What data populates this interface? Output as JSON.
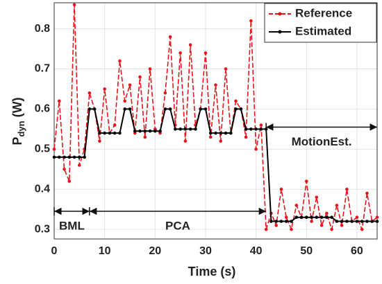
{
  "chart_data": {
    "type": "line",
    "xlabel": "Time (s)",
    "ylabel": {
      "main": "P",
      "sub": "dyn",
      "unit": "(W)"
    },
    "x": [
      0,
      1,
      2,
      3,
      4,
      5,
      6,
      7,
      8,
      9,
      10,
      11,
      12,
      13,
      14,
      15,
      16,
      17,
      18,
      19,
      20,
      21,
      22,
      23,
      24,
      25,
      26,
      27,
      28,
      29,
      30,
      31,
      32,
      33,
      34,
      35,
      36,
      37,
      38,
      39,
      40,
      41,
      42,
      43,
      44,
      45,
      46,
      47,
      48,
      49,
      50,
      51,
      52,
      53,
      54,
      55,
      56,
      57,
      58,
      59,
      60,
      61,
      62,
      63,
      64
    ],
    "series": [
      {
        "name": "Reference",
        "color": "#e8141b",
        "dash": true,
        "values": [
          0.5,
          0.62,
          0.45,
          0.42,
          0.86,
          0.46,
          0.5,
          0.64,
          0.6,
          0.52,
          0.65,
          0.54,
          0.56,
          0.72,
          0.62,
          0.66,
          0.54,
          0.68,
          0.53,
          0.7,
          0.55,
          0.54,
          0.64,
          0.78,
          0.56,
          0.74,
          0.52,
          0.76,
          0.56,
          0.6,
          0.74,
          0.53,
          0.66,
          0.52,
          0.7,
          0.54,
          0.62,
          0.6,
          0.53,
          0.82,
          0.5,
          0.56,
          0.3,
          0.34,
          0.31,
          0.4,
          0.33,
          0.3,
          0.36,
          0.33,
          0.42,
          0.32,
          0.38,
          0.31,
          0.34,
          0.3,
          0.36,
          0.31,
          0.4,
          0.32,
          0.33,
          0.3,
          0.39,
          0.32,
          0.33
        ]
      },
      {
        "name": "Estimated",
        "color": "#000000",
        "dash": false,
        "values": [
          0.48,
          0.48,
          0.48,
          0.48,
          0.48,
          0.48,
          0.48,
          0.6,
          0.6,
          0.54,
          0.54,
          0.54,
          0.54,
          0.54,
          0.6,
          0.6,
          0.545,
          0.545,
          0.545,
          0.545,
          0.545,
          0.545,
          0.6,
          0.6,
          0.55,
          0.55,
          0.55,
          0.55,
          0.55,
          0.6,
          0.6,
          0.54,
          0.54,
          0.54,
          0.54,
          0.54,
          0.6,
          0.6,
          0.55,
          0.55,
          0.55,
          0.55,
          0.55,
          0.32,
          0.32,
          0.32,
          0.32,
          0.32,
          0.33,
          0.33,
          0.33,
          0.33,
          0.33,
          0.33,
          0.33,
          0.33,
          0.32,
          0.32,
          0.32,
          0.32,
          0.32,
          0.32,
          0.32,
          0.32,
          0.32
        ]
      }
    ],
    "xlim": [
      0,
      64
    ],
    "xticks": [
      0,
      10,
      20,
      30,
      40,
      50,
      60
    ],
    "ylim": [
      0.276,
      0.865
    ],
    "yticks": [
      0.3,
      0.4,
      0.5,
      0.6,
      0.7,
      0.8
    ],
    "grid": true,
    "legend": "upper right",
    "annotations": [
      {
        "text": "BML",
        "x": [
          0,
          7
        ],
        "y": 0.345
      },
      {
        "text": "PCA",
        "x": [
          7,
          42
        ],
        "y": 0.345
      },
      {
        "text": "MotionEst.",
        "x": [
          42,
          64
        ],
        "y": 0.555
      }
    ]
  }
}
